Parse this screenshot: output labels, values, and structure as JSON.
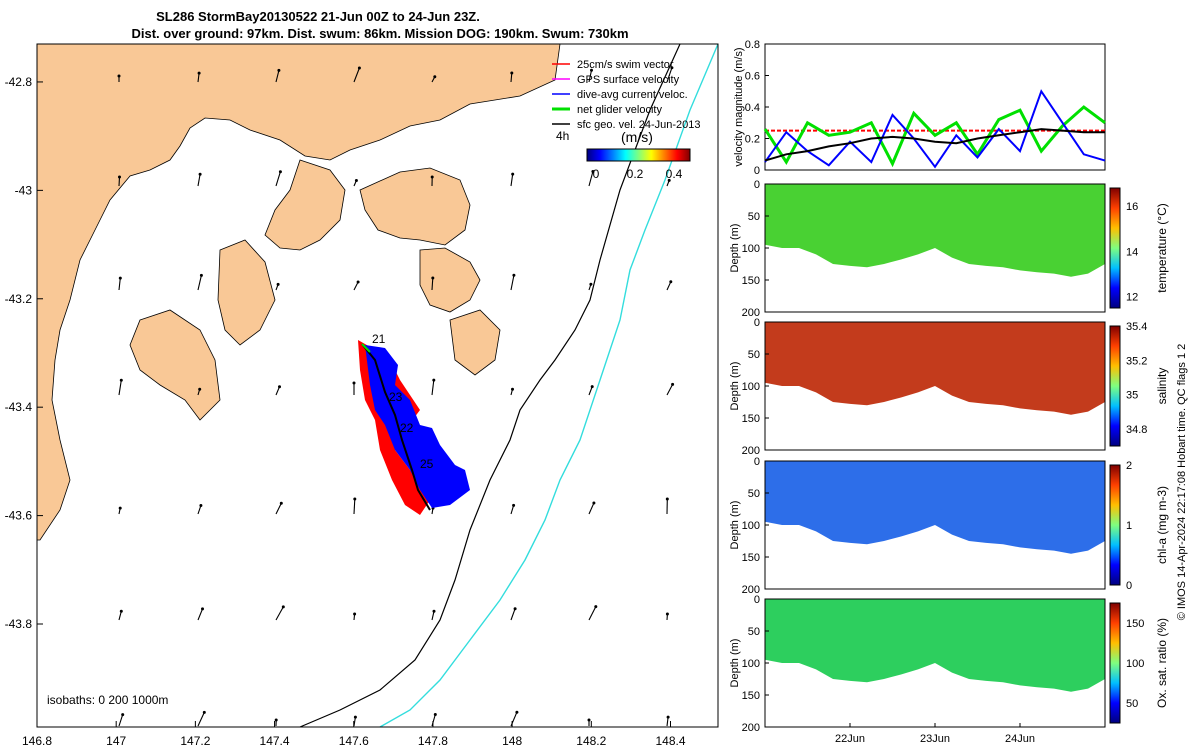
{
  "title": {
    "line1": "SL286 StormBay20130522 21-Jun 00Z to 24-Jun 23Z.",
    "line2": "Dist. over ground: 97km. Dist. swum: 86km. Mission DOG: 190km. Swum: 730km"
  },
  "colors": {
    "land": "#f9c896",
    "glider_red": "#ff0000",
    "glider_blue": "#0000ff",
    "velocity_green": "#00e000",
    "isobath_cyan": "#33dddd",
    "isobath_black": "#000000",
    "temp_fill": "#3fcf28",
    "sal_fill": "#c03010",
    "chl_fill": "#2266e8",
    "oxy_fill": "#22cc55"
  },
  "map": {
    "x_ticks": [
      "146.8",
      "147",
      "147.2",
      "147.4",
      "147.6",
      "147.8",
      "148",
      "148.2",
      "148.4"
    ],
    "y_ticks": [
      "-42.8",
      "-43",
      "-43.2",
      "-43.4",
      "-43.6",
      "-43.8"
    ],
    "xlim": [
      146.8,
      148.52
    ],
    "ylim": [
      -43.99,
      -42.73
    ],
    "isobath_label": "isobaths: 0   200  1000m",
    "legend": [
      {
        "label": "25cm/s swim vector",
        "color": "#ff0000"
      },
      {
        "label": "GPS surface velocity",
        "color": "#ff00ff"
      },
      {
        "label": "dive-avg current veloc.",
        "color": "#0000ff"
      },
      {
        "label": "net glider velocity",
        "color": "#00e000"
      },
      {
        "label": "sfc geo. vel. 24-Jun-2013",
        "color": "#000000"
      }
    ],
    "colorbar_time": "4h",
    "colorbar_units": "(m/s)",
    "colorbar_ticks": [
      "0",
      "0.2",
      "0.4"
    ],
    "day_labels": [
      "21",
      "22",
      "23",
      "25"
    ]
  },
  "chart_data": {
    "type": "line",
    "x_ticks": [
      "22Jun",
      "23Jun",
      "24Jun"
    ],
    "velocity": {
      "ylabel": "velocity magnitude (m/s)",
      "ylim": [
        0,
        0.8
      ],
      "yticks": [
        "0",
        "0.2",
        "0.4",
        "0.6",
        "0.8"
      ],
      "x_days": [
        21.0,
        21.25,
        21.5,
        21.75,
        22.0,
        22.25,
        22.5,
        22.75,
        23.0,
        23.25,
        23.5,
        23.75,
        24.0,
        24.25,
        24.5,
        24.75,
        25.0
      ],
      "series": [
        {
          "name": "25cm/s swim vector",
          "color": "#ff0000",
          "values": [
            0.25,
            0.25,
            0.25,
            0.25,
            0.25,
            0.25,
            0.25,
            0.25,
            0.25,
            0.25,
            0.25,
            0.25,
            0.25,
            0.25,
            0.25,
            0.25,
            0.25
          ]
        },
        {
          "name": "net glider velocity",
          "color": "#00e000",
          "values": [
            0.26,
            0.05,
            0.3,
            0.22,
            0.24,
            0.3,
            0.04,
            0.36,
            0.22,
            0.3,
            0.1,
            0.32,
            0.38,
            0.12,
            0.28,
            0.4,
            0.3
          ]
        },
        {
          "name": "dive-avg current veloc.",
          "color": "#0000ff",
          "values": [
            0.05,
            0.24,
            0.12,
            0.03,
            0.18,
            0.05,
            0.35,
            0.2,
            0.02,
            0.22,
            0.08,
            0.26,
            0.12,
            0.5,
            0.3,
            0.1,
            0.06
          ]
        },
        {
          "name": "sfc geo. vel.",
          "color": "#000000",
          "values": [
            0.06,
            0.1,
            0.12,
            0.15,
            0.17,
            0.2,
            0.21,
            0.2,
            0.18,
            0.17,
            0.2,
            0.22,
            0.24,
            0.26,
            0.25,
            0.24,
            0.24
          ]
        }
      ]
    },
    "sections": [
      {
        "name": "temperature",
        "cbar_label": "temperature (°C)",
        "cbar_ticks": [
          "12",
          "14",
          "16"
        ],
        "cbar_range": [
          11.5,
          16.8
        ],
        "ylabel": "Depth (m)",
        "yticks": [
          "0",
          "50",
          "100",
          "150",
          "200"
        ]
      },
      {
        "name": "salinity",
        "cbar_label": "salinity",
        "cbar_ticks": [
          "34.8",
          "35",
          "35.2",
          "35.4"
        ],
        "cbar_range": [
          34.7,
          35.4
        ],
        "ylabel": "Depth (m)",
        "yticks": [
          "0",
          "50",
          "100",
          "150",
          "200"
        ]
      },
      {
        "name": "chl-a",
        "cbar_label": "chl-a (mg m-3)",
        "cbar_ticks": [
          "0",
          "1",
          "2"
        ],
        "cbar_range": [
          0,
          2
        ],
        "ylabel": "Depth (m)",
        "yticks": [
          "0",
          "50",
          "100",
          "150",
          "200"
        ]
      },
      {
        "name": "oxygen",
        "cbar_label": "Ox. sat. ratio (%)",
        "cbar_ticks": [
          "50",
          "100",
          "150"
        ],
        "cbar_range": [
          25,
          175
        ],
        "ylabel": "Depth (m)",
        "yticks": [
          "0",
          "50",
          "100",
          "150",
          "200"
        ]
      }
    ],
    "bottom_depth": {
      "x_days": [
        21.0,
        21.2,
        21.4,
        21.6,
        21.8,
        22.0,
        22.2,
        22.4,
        22.6,
        22.8,
        23.0,
        23.2,
        23.4,
        23.6,
        23.8,
        24.0,
        24.2,
        24.4,
        24.6,
        24.8,
        25.0
      ],
      "depth_m": [
        95,
        100,
        100,
        110,
        125,
        128,
        130,
        125,
        118,
        110,
        100,
        115,
        125,
        128,
        130,
        135,
        138,
        140,
        145,
        140,
        125
      ]
    }
  },
  "side_label": "© IMOS 14-Apr-2024 22:17:08 Hobart time. QC flags 1  2"
}
